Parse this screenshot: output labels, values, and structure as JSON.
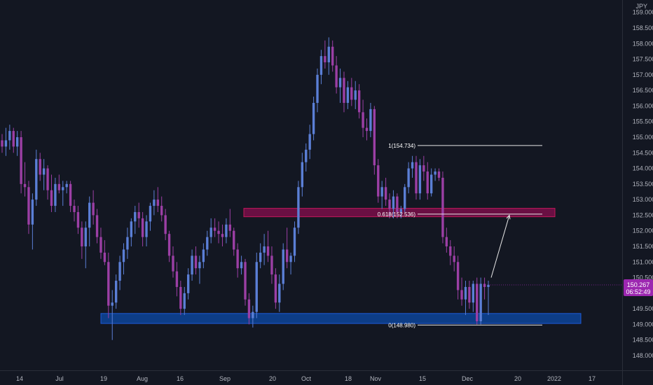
{
  "chart_data": {
    "type": "candlestick",
    "currency_label": "JPY",
    "y_axis": {
      "ylim": [
        147.7,
        159.4
      ],
      "ticks": [
        148.0,
        148.5,
        149.0,
        149.5,
        150.0,
        150.5,
        151.0,
        151.5,
        152.0,
        152.5,
        153.0,
        153.5,
        154.0,
        154.5,
        155.0,
        155.5,
        156.0,
        156.5,
        157.0,
        157.5,
        158.0,
        158.5,
        159.0
      ],
      "tick_labels": [
        "148.000",
        "148.500",
        "149.000",
        "149.500",
        "150.000",
        "150.500",
        "151.000",
        "151.500",
        "152.000",
        "152.500",
        "153.000",
        "153.500",
        "154.000",
        "154.500",
        "155.000",
        "155.500",
        "156.000",
        "156.500",
        "157.000",
        "157.500",
        "158.000",
        "158.500",
        "159.000"
      ]
    },
    "x_axis": {
      "labels": [
        "14",
        "Jul",
        "19",
        "Aug",
        "16",
        "Sep",
        "20",
        "Oct",
        "18",
        "Nov",
        "15",
        "Dec",
        "20",
        "2022",
        "17"
      ]
    },
    "current_price": {
      "value": 150.267,
      "label": "150.267",
      "countdown": "06:52:49",
      "color": "#9c27b0"
    },
    "zones": [
      {
        "name": "resistance-zone",
        "low": 152.45,
        "high": 152.72,
        "color": "#880e4f"
      },
      {
        "name": "support-zone",
        "low": 149.03,
        "high": 149.35,
        "color": "#0d47a1"
      }
    ],
    "fib_levels": [
      {
        "label": "1(154.734)",
        "value": 154.734
      },
      {
        "label": "0.618(152.536)",
        "value": 152.536
      },
      {
        "label": "0(148.980)",
        "value": 148.98
      }
    ],
    "projection_arrow": {
      "from": 150.5,
      "to": 152.5
    },
    "colors": {
      "up": "#5b7fd6",
      "down": "#9c3fa5",
      "background": "#131722",
      "text": "#b2b5be"
    },
    "candles": [
      [
        154.9,
        155.1,
        154.5,
        154.7
      ],
      [
        154.7,
        155.3,
        154.4,
        154.9
      ],
      [
        154.9,
        155.4,
        154.6,
        155.2
      ],
      [
        155.2,
        155.3,
        154.5,
        154.7
      ],
      [
        154.7,
        155.2,
        154.4,
        155.0
      ],
      [
        155.0,
        155.2,
        153.2,
        153.5
      ],
      [
        153.5,
        154.2,
        153.1,
        153.4
      ],
      [
        153.4,
        153.6,
        151.9,
        152.2
      ],
      [
        152.2,
        153.2,
        151.4,
        153.0
      ],
      [
        153.0,
        154.6,
        152.8,
        154.3
      ],
      [
        154.3,
        154.5,
        153.6,
        153.8
      ],
      [
        153.8,
        154.3,
        153.3,
        154.0
      ],
      [
        154.0,
        154.1,
        153.0,
        153.3
      ],
      [
        153.3,
        153.8,
        152.6,
        152.8
      ],
      [
        152.8,
        153.7,
        152.6,
        153.5
      ],
      [
        153.5,
        153.8,
        153.2,
        153.3
      ],
      [
        153.3,
        153.6,
        152.8,
        153.4
      ],
      [
        153.4,
        153.6,
        153.2,
        153.5
      ],
      [
        153.5,
        153.6,
        152.6,
        152.8
      ],
      [
        152.8,
        153.0,
        152.3,
        152.6
      ],
      [
        152.6,
        152.8,
        151.9,
        152.1
      ],
      [
        152.1,
        152.3,
        151.1,
        151.5
      ],
      [
        151.5,
        152.3,
        150.8,
        152.1
      ],
      [
        152.1,
        153.1,
        151.5,
        152.9
      ],
      [
        152.9,
        153.3,
        152.2,
        152.5
      ],
      [
        152.5,
        152.7,
        151.6,
        151.8
      ],
      [
        151.8,
        152.1,
        151.1,
        151.3
      ],
      [
        151.3,
        151.7,
        150.9,
        151.0
      ],
      [
        151.0,
        151.3,
        149.2,
        149.6
      ],
      [
        149.6,
        150.1,
        148.5,
        149.7
      ],
      [
        149.7,
        150.6,
        149.5,
        150.4
      ],
      [
        150.4,
        151.2,
        150.1,
        151.0
      ],
      [
        151.0,
        151.6,
        150.6,
        151.4
      ],
      [
        151.4,
        152.1,
        151.1,
        151.8
      ],
      [
        151.8,
        152.4,
        151.5,
        152.3
      ],
      [
        152.3,
        152.8,
        151.9,
        152.6
      ],
      [
        152.6,
        152.9,
        152.1,
        152.4
      ],
      [
        152.4,
        152.6,
        151.5,
        151.8
      ],
      [
        151.8,
        152.5,
        151.5,
        152.3
      ],
      [
        152.3,
        152.9,
        152.0,
        152.8
      ],
      [
        152.8,
        153.3,
        152.5,
        153.0
      ],
      [
        153.0,
        153.4,
        152.6,
        152.8
      ],
      [
        152.8,
        153.1,
        152.3,
        152.5
      ],
      [
        152.5,
        152.7,
        151.7,
        151.9
      ],
      [
        151.9,
        152.0,
        151.0,
        151.2
      ],
      [
        151.2,
        151.5,
        150.5,
        150.7
      ],
      [
        150.7,
        151.0,
        149.9,
        150.2
      ],
      [
        150.2,
        150.4,
        149.3,
        149.5
      ],
      [
        149.5,
        150.2,
        149.3,
        150.0
      ],
      [
        150.0,
        150.8,
        149.8,
        150.6
      ],
      [
        150.6,
        151.4,
        150.4,
        151.2
      ],
      [
        151.2,
        151.5,
        150.6,
        150.8
      ],
      [
        150.8,
        151.2,
        150.3,
        151.0
      ],
      [
        151.0,
        151.6,
        150.8,
        151.4
      ],
      [
        151.4,
        152.0,
        151.2,
        151.8
      ],
      [
        151.8,
        152.4,
        151.6,
        152.1
      ],
      [
        152.1,
        152.4,
        151.8,
        152.0
      ],
      [
        152.0,
        152.3,
        151.6,
        151.9
      ],
      [
        151.9,
        152.2,
        151.5,
        151.8
      ],
      [
        151.8,
        152.4,
        151.6,
        152.2
      ],
      [
        152.2,
        152.7,
        151.8,
        152.0
      ],
      [
        152.0,
        152.1,
        151.2,
        151.4
      ],
      [
        151.4,
        151.6,
        150.5,
        150.8
      ],
      [
        150.8,
        151.2,
        150.6,
        151.0
      ],
      [
        151.0,
        151.1,
        149.6,
        149.8
      ],
      [
        149.8,
        150.0,
        149.0,
        149.2
      ],
      [
        149.2,
        149.6,
        148.9,
        149.4
      ],
      [
        149.4,
        151.3,
        149.2,
        151.0
      ],
      [
        151.0,
        151.6,
        150.8,
        151.3
      ],
      [
        151.3,
        151.9,
        150.9,
        151.5
      ],
      [
        151.5,
        152.0,
        151.0,
        151.2
      ],
      [
        151.2,
        151.5,
        150.3,
        150.6
      ],
      [
        150.6,
        150.8,
        149.5,
        149.7
      ],
      [
        149.7,
        150.6,
        149.4,
        150.3
      ],
      [
        150.3,
        151.6,
        150.1,
        151.4
      ],
      [
        151.4,
        152.1,
        150.8,
        151.0
      ],
      [
        151.0,
        151.3,
        150.6,
        151.2
      ],
      [
        151.2,
        152.3,
        151.0,
        152.1
      ],
      [
        152.1,
        153.6,
        151.9,
        153.4
      ],
      [
        153.4,
        154.5,
        153.1,
        154.2
      ],
      [
        154.2,
        154.8,
        153.9,
        154.6
      ],
      [
        154.6,
        155.4,
        154.3,
        155.1
      ],
      [
        155.1,
        156.3,
        154.9,
        156.1
      ],
      [
        156.1,
        157.2,
        155.8,
        157.0
      ],
      [
        157.0,
        157.8,
        156.7,
        157.6
      ],
      [
        157.6,
        158.1,
        157.2,
        157.4
      ],
      [
        157.4,
        158.2,
        157.0,
        157.9
      ],
      [
        157.9,
        158.1,
        157.1,
        157.3
      ],
      [
        157.3,
        157.6,
        156.4,
        156.6
      ],
      [
        156.6,
        157.2,
        156.1,
        156.9
      ],
      [
        156.9,
        157.1,
        155.8,
        156.1
      ],
      [
        156.1,
        156.8,
        155.9,
        156.6
      ],
      [
        156.6,
        156.9,
        156.0,
        156.2
      ],
      [
        156.2,
        156.8,
        155.9,
        156.5
      ],
      [
        156.5,
        156.7,
        155.6,
        155.8
      ],
      [
        155.8,
        156.2,
        155.0,
        155.3
      ],
      [
        155.3,
        155.6,
        154.9,
        155.2
      ],
      [
        155.2,
        156.1,
        155.0,
        155.9
      ],
      [
        155.9,
        156.0,
        153.8,
        154.1
      ],
      [
        154.1,
        154.3,
        152.9,
        153.1
      ],
      [
        153.1,
        153.6,
        152.7,
        153.4
      ],
      [
        153.4,
        153.7,
        152.8,
        153.0
      ],
      [
        153.0,
        153.2,
        152.4,
        152.7
      ],
      [
        152.7,
        153.3,
        152.4,
        153.1
      ],
      [
        153.1,
        153.2,
        152.4,
        152.6
      ],
      [
        152.6,
        152.8,
        152.4,
        152.7
      ],
      [
        152.7,
        153.5,
        152.6,
        153.4
      ],
      [
        153.4,
        154.2,
        153.2,
        154.0
      ],
      [
        154.0,
        154.4,
        153.7,
        154.2
      ],
      [
        154.2,
        154.4,
        153.0,
        153.2
      ],
      [
        153.2,
        154.3,
        153.0,
        154.1
      ],
      [
        154.1,
        154.4,
        153.6,
        153.9
      ],
      [
        153.9,
        154.2,
        153.0,
        153.2
      ],
      [
        153.2,
        154.0,
        153.1,
        153.8
      ],
      [
        153.8,
        154.0,
        153.6,
        153.9
      ],
      [
        153.9,
        154.0,
        153.6,
        153.7
      ],
      [
        153.7,
        153.9,
        151.6,
        151.8
      ],
      [
        151.8,
        152.1,
        151.3,
        151.5
      ],
      [
        151.5,
        151.7,
        150.9,
        151.2
      ],
      [
        151.2,
        151.5,
        150.7,
        151.0
      ],
      [
        151.0,
        151.2,
        149.8,
        150.1
      ],
      [
        150.1,
        150.5,
        149.6,
        149.8
      ],
      [
        149.8,
        150.4,
        149.3,
        150.2
      ],
      [
        150.2,
        150.4,
        149.5,
        149.7
      ],
      [
        149.7,
        150.4,
        149.4,
        150.3
      ],
      [
        150.3,
        150.5,
        149.0,
        149.1
      ],
      [
        149.1,
        150.5,
        149.0,
        150.3
      ],
      [
        150.3,
        150.5,
        149.8,
        150.2
      ],
      [
        150.2,
        150.4,
        149.3,
        150.27
      ]
    ]
  }
}
